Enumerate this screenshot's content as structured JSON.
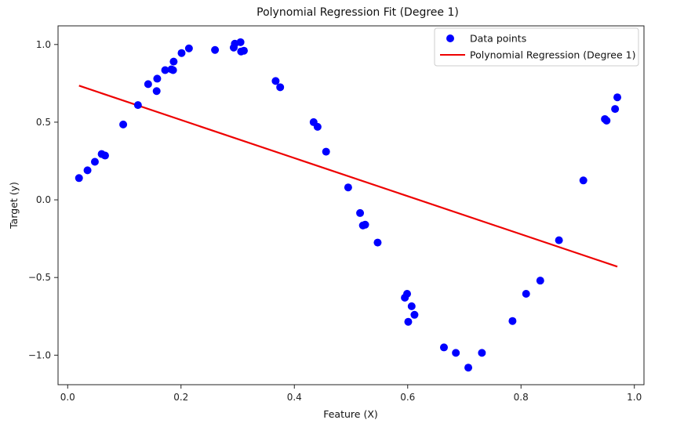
{
  "chart_data": {
    "type": "scatter",
    "title": "Polynomial Regression Fit (Degree 1)",
    "xlabel": "Feature (X)",
    "ylabel": "Target (y)",
    "xlim": [
      -0.017,
      1.017
    ],
    "ylim": [
      -1.19,
      1.12
    ],
    "xticks": [
      0.0,
      0.2,
      0.4,
      0.6,
      0.8,
      1.0
    ],
    "xtick_labels": [
      "0.0",
      "0.2",
      "0.4",
      "0.6",
      "0.8",
      "1.0"
    ],
    "yticks": [
      -1.0,
      -0.5,
      0.0,
      0.5,
      1.0
    ],
    "ytick_labels": [
      "−1.0",
      "−0.5",
      "0.0",
      "0.5",
      "1.0"
    ],
    "legend_position": "top-right",
    "grid": false,
    "series": [
      {
        "name": "Data points",
        "kind": "scatter",
        "color": "#0000ff",
        "points": [
          [
            0.02,
            0.14
          ],
          [
            0.035,
            0.19
          ],
          [
            0.048,
            0.245
          ],
          [
            0.06,
            0.295
          ],
          [
            0.066,
            0.285
          ],
          [
            0.098,
            0.485
          ],
          [
            0.124,
            0.61
          ],
          [
            0.142,
            0.745
          ],
          [
            0.157,
            0.7
          ],
          [
            0.158,
            0.78
          ],
          [
            0.172,
            0.835
          ],
          [
            0.183,
            0.84
          ],
          [
            0.186,
            0.835
          ],
          [
            0.187,
            0.89
          ],
          [
            0.201,
            0.945
          ],
          [
            0.214,
            0.975
          ],
          [
            0.26,
            0.965
          ],
          [
            0.293,
            0.98
          ],
          [
            0.295,
            1.005
          ],
          [
            0.305,
            1.015
          ],
          [
            0.306,
            0.955
          ],
          [
            0.311,
            0.96
          ],
          [
            0.367,
            0.765
          ],
          [
            0.375,
            0.725
          ],
          [
            0.434,
            0.5
          ],
          [
            0.441,
            0.47
          ],
          [
            0.456,
            0.31
          ],
          [
            0.495,
            0.08
          ],
          [
            0.516,
            -0.085
          ],
          [
            0.521,
            -0.165
          ],
          [
            0.525,
            -0.16
          ],
          [
            0.547,
            -0.275
          ],
          [
            0.595,
            -0.63
          ],
          [
            0.599,
            -0.605
          ],
          [
            0.601,
            -0.785
          ],
          [
            0.607,
            -0.685
          ],
          [
            0.612,
            -0.74
          ],
          [
            0.664,
            -0.95
          ],
          [
            0.685,
            -0.985
          ],
          [
            0.707,
            -1.08
          ],
          [
            0.731,
            -0.985
          ],
          [
            0.785,
            -0.78
          ],
          [
            0.809,
            -0.605
          ],
          [
            0.834,
            -0.52
          ],
          [
            0.867,
            -0.26
          ],
          [
            0.91,
            0.125
          ],
          [
            0.948,
            0.52
          ],
          [
            0.951,
            0.51
          ],
          [
            0.966,
            0.585
          ],
          [
            0.97,
            0.66
          ]
        ]
      },
      {
        "name": "Polynomial Regression (Degree 1)",
        "kind": "line",
        "color": "#ee0000",
        "x": [
          0.02,
          0.97
        ],
        "y": [
          0.735,
          -0.43
        ]
      }
    ]
  }
}
